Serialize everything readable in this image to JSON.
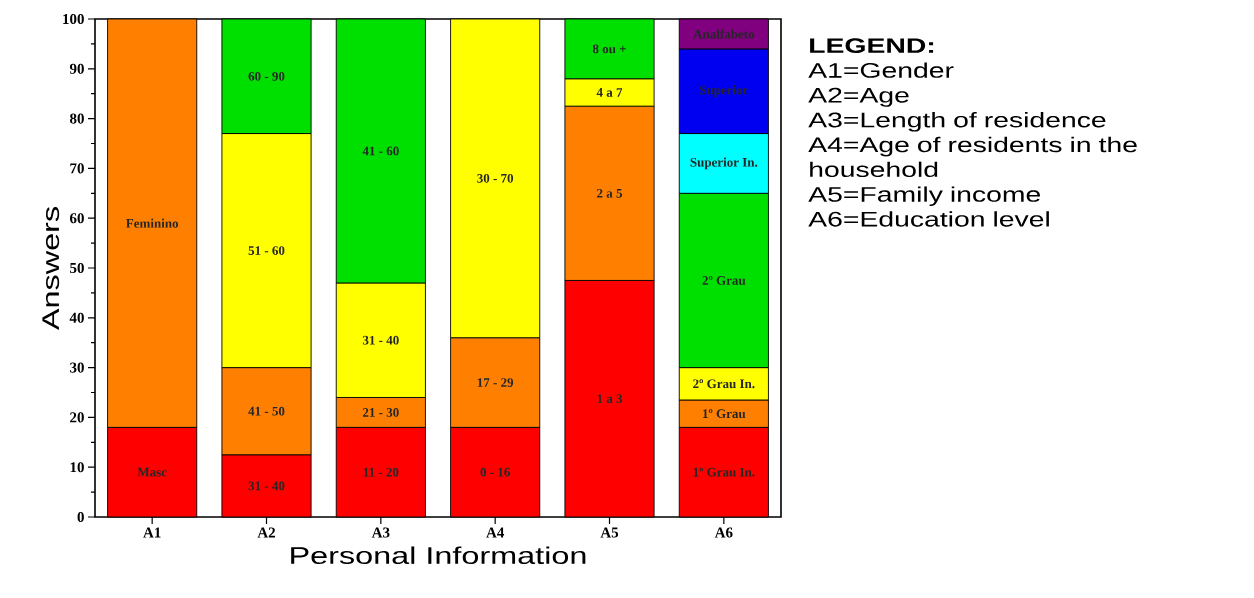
{
  "chart_data": {
    "type": "bar",
    "stacked": true,
    "xlabel": "Personal Information",
    "ylabel": "Answers",
    "categories": [
      "A1",
      "A2",
      "A3",
      "A4",
      "A5",
      "A6"
    ],
    "series": [
      {
        "name": "Masc",
        "color": "#ff0000",
        "values": [
          18,
          null,
          null,
          null,
          null,
          null
        ]
      },
      {
        "name": "Feminino",
        "color": "#ff8000",
        "values": [
          82,
          null,
          null,
          null,
          null,
          null
        ]
      },
      {
        "name": "31 - 40",
        "color": "#ff0000",
        "values": [
          null,
          12.5,
          null,
          null,
          null,
          null
        ]
      },
      {
        "name": "41 - 50",
        "color": "#ff8000",
        "values": [
          null,
          17.5,
          null,
          null,
          null,
          null
        ]
      },
      {
        "name": "51 - 60",
        "color": "#ffff00",
        "values": [
          null,
          47,
          null,
          null,
          null,
          null
        ]
      },
      {
        "name": "60 - 90",
        "color": "#00e000",
        "values": [
          null,
          23,
          null,
          null,
          null,
          null
        ]
      },
      {
        "name": "11 - 20",
        "color": "#ff0000",
        "values": [
          null,
          null,
          18,
          null,
          null,
          null
        ]
      },
      {
        "name": "21 - 30",
        "color": "#ff8000",
        "values": [
          null,
          null,
          6,
          null,
          null,
          null
        ]
      },
      {
        "name": "31 - 40",
        "color": "#ffff00",
        "values": [
          null,
          null,
          23,
          null,
          null,
          null
        ]
      },
      {
        "name": "41 - 60",
        "color": "#00e000",
        "values": [
          null,
          null,
          53,
          null,
          null,
          null
        ]
      },
      {
        "name": "0 - 16",
        "color": "#ff0000",
        "values": [
          null,
          null,
          null,
          18,
          null,
          null
        ]
      },
      {
        "name": "17 - 29",
        "color": "#ff8000",
        "values": [
          null,
          null,
          null,
          18,
          null,
          null
        ]
      },
      {
        "name": "30 - 70",
        "color": "#ffff00",
        "values": [
          null,
          null,
          null,
          64,
          null,
          null
        ]
      },
      {
        "name": "1 a 3",
        "color": "#ff0000",
        "values": [
          null,
          null,
          null,
          null,
          47.5,
          null
        ]
      },
      {
        "name": "2 a 5",
        "color": "#ff8000",
        "values": [
          null,
          null,
          null,
          null,
          35,
          null
        ]
      },
      {
        "name": "4 a 7",
        "color": "#ffff00",
        "values": [
          null,
          null,
          null,
          null,
          5.5,
          null
        ]
      },
      {
        "name": "8 ou +",
        "color": "#00e000",
        "values": [
          null,
          null,
          null,
          null,
          12,
          null
        ]
      },
      {
        "name": "1º Grau In.",
        "color": "#ff0000",
        "values": [
          null,
          null,
          null,
          null,
          null,
          18
        ]
      },
      {
        "name": "1º Grau",
        "color": "#ff8000",
        "values": [
          null,
          null,
          null,
          null,
          null,
          5.5
        ]
      },
      {
        "name": "2º Grau In.",
        "color": "#ffff00",
        "values": [
          null,
          null,
          null,
          null,
          null,
          6.5
        ]
      },
      {
        "name": "2º Grau",
        "color": "#00e000",
        "values": [
          null,
          null,
          null,
          null,
          null,
          35
        ]
      },
      {
        "name": "Superior In.",
        "color": "#00ffff",
        "values": [
          null,
          null,
          null,
          null,
          null,
          12
        ]
      },
      {
        "name": "Superior",
        "color": "#0000f0",
        "values": [
          null,
          null,
          null,
          null,
          null,
          17
        ]
      },
      {
        "name": "Analfabeto",
        "color": "#800080",
        "values": [
          null,
          null,
          null,
          null,
          null,
          6
        ]
      }
    ],
    "ylim": [
      0,
      100
    ],
    "yticks": [
      0,
      10,
      20,
      30,
      40,
      50,
      60,
      70,
      80,
      90,
      100
    ],
    "legend_title": "LEGEND:",
    "annotations": [
      "A1=Gender",
      "A2=Age",
      "A3=Length of residence",
      "A4=Age of residents in the household",
      "A5=Family income",
      "A6=Education level"
    ]
  }
}
